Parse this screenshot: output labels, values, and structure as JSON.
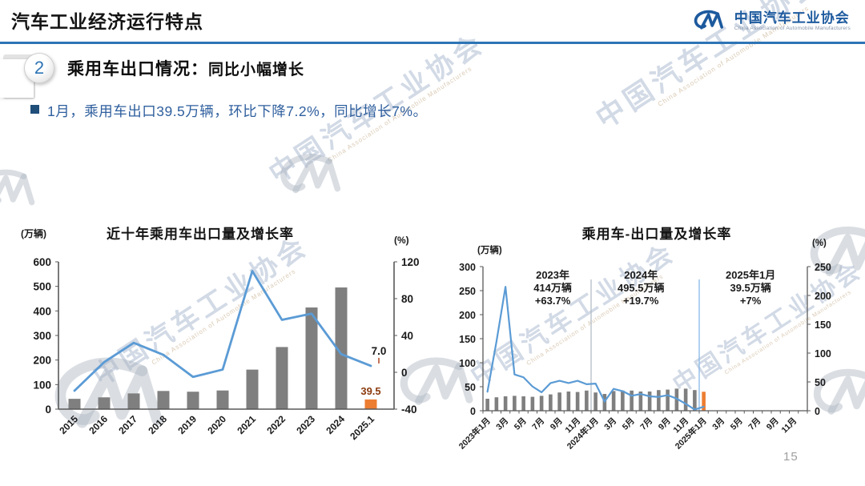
{
  "header": {
    "title": "汽车工业经济运行特点",
    "logo": {
      "org_cn": "中国汽车工业协会",
      "org_en": "China Association of Automobile Manufacturers"
    }
  },
  "section": {
    "number": "2",
    "heading": "乘用车出口情况：",
    "heading_sub": "同比小幅增长",
    "bullet": "1月，乘用车出口39.5万辆，环比下降7.2%，同比增长7%。"
  },
  "watermark": {
    "text_cn": "中国汽车工业协会",
    "text_en": "China Association of Automobile Manufacturers"
  },
  "page_number": "15",
  "colors": {
    "accent_blue": "#2E74B5",
    "bar_gray": "#7F7F7F",
    "line_blue": "#5B9BD5",
    "highlight_orange": "#ED7D31",
    "bar_label_red": "#8B3A0E",
    "bullet_blue": "#1F4E79"
  },
  "chart_data": [
    {
      "type": "bar",
      "title": "近十年乘用车出口量及增长率",
      "unit_left": "(万辆)",
      "unit_right": "(%)",
      "categories": [
        "2015",
        "2016",
        "2017",
        "2018",
        "2019",
        "2020",
        "2021",
        "2022",
        "2023",
        "2024",
        "2025.1"
      ],
      "series": [
        {
          "name": "出口量(万辆)",
          "type": "bar",
          "axis": "left",
          "values": [
            42,
            48,
            64,
            74,
            71,
            76,
            161,
            253,
            414,
            495.5,
            39.5
          ],
          "color": "#7F7F7F",
          "last_color": "#ED7D31"
        },
        {
          "name": "增长率(%)",
          "type": "line",
          "axis": "right",
          "values": [
            -20,
            11,
            32,
            19,
            -5,
            3,
            110,
            57,
            63.7,
            19.7,
            7
          ],
          "color": "#5B9BD5"
        }
      ],
      "left_axis": {
        "min": 0,
        "max": 600,
        "step": 100
      },
      "right_axis": {
        "min": -40,
        "max": 120,
        "step": 40
      },
      "end_labels": {
        "line_end": "7.0",
        "bar_end": "39.5"
      },
      "grid": false,
      "legend": "none"
    },
    {
      "type": "bar",
      "title": "乘用车-出口量及增长率",
      "unit_left": "(万辆)",
      "unit_right": "(%)",
      "x_tick_labels": [
        "2023年1月",
        "3月",
        "5月",
        "7月",
        "9月",
        "11月",
        "2024年1月",
        "3月",
        "5月",
        "7月",
        "9月",
        "11月",
        "2025年1月",
        "3月",
        "5月",
        "7月",
        "9月",
        "11月"
      ],
      "months_total": 36,
      "series": [
        {
          "name": "出口量(万辆)",
          "type": "bar",
          "axis": "left",
          "values": [
            25,
            28,
            30,
            31,
            30,
            29,
            31,
            34,
            38,
            40,
            39,
            42,
            38,
            35,
            41,
            42,
            42,
            40,
            40,
            43,
            44,
            46,
            46,
            43,
            39.5
          ],
          "color": "#7F7F7F",
          "last_color": "#ED7D31"
        },
        {
          "name": "增长率(%)",
          "type": "line",
          "axis": "right",
          "values": [
            33,
            120,
            215,
            63,
            58,
            42,
            32,
            48,
            52,
            48,
            52,
            46,
            47,
            16,
            38,
            34,
            26,
            29,
            25,
            24,
            27,
            21,
            12,
            2,
            7
          ],
          "color": "#5B9BD5"
        }
      ],
      "left_axis": {
        "min": 0,
        "max": 300,
        "step": 50
      },
      "right_axis": {
        "min": 0,
        "max": 250,
        "step": 50
      },
      "dividers": [
        {
          "at_month": 12,
          "color": "#AEB8C2"
        },
        {
          "at_month": 24,
          "color": "#7FB2E5"
        }
      ],
      "annotations": [
        {
          "lines": "2023年\n414万辆\n+63.7%",
          "x_frac": 0.215
        },
        {
          "lines": "2024年\n495.5万辆\n+19.7%",
          "x_frac": 0.487
        },
        {
          "lines": "2025年1月\n39.5万辆\n+7%",
          "x_frac": 0.825
        }
      ],
      "grid": false,
      "legend": "none"
    }
  ]
}
